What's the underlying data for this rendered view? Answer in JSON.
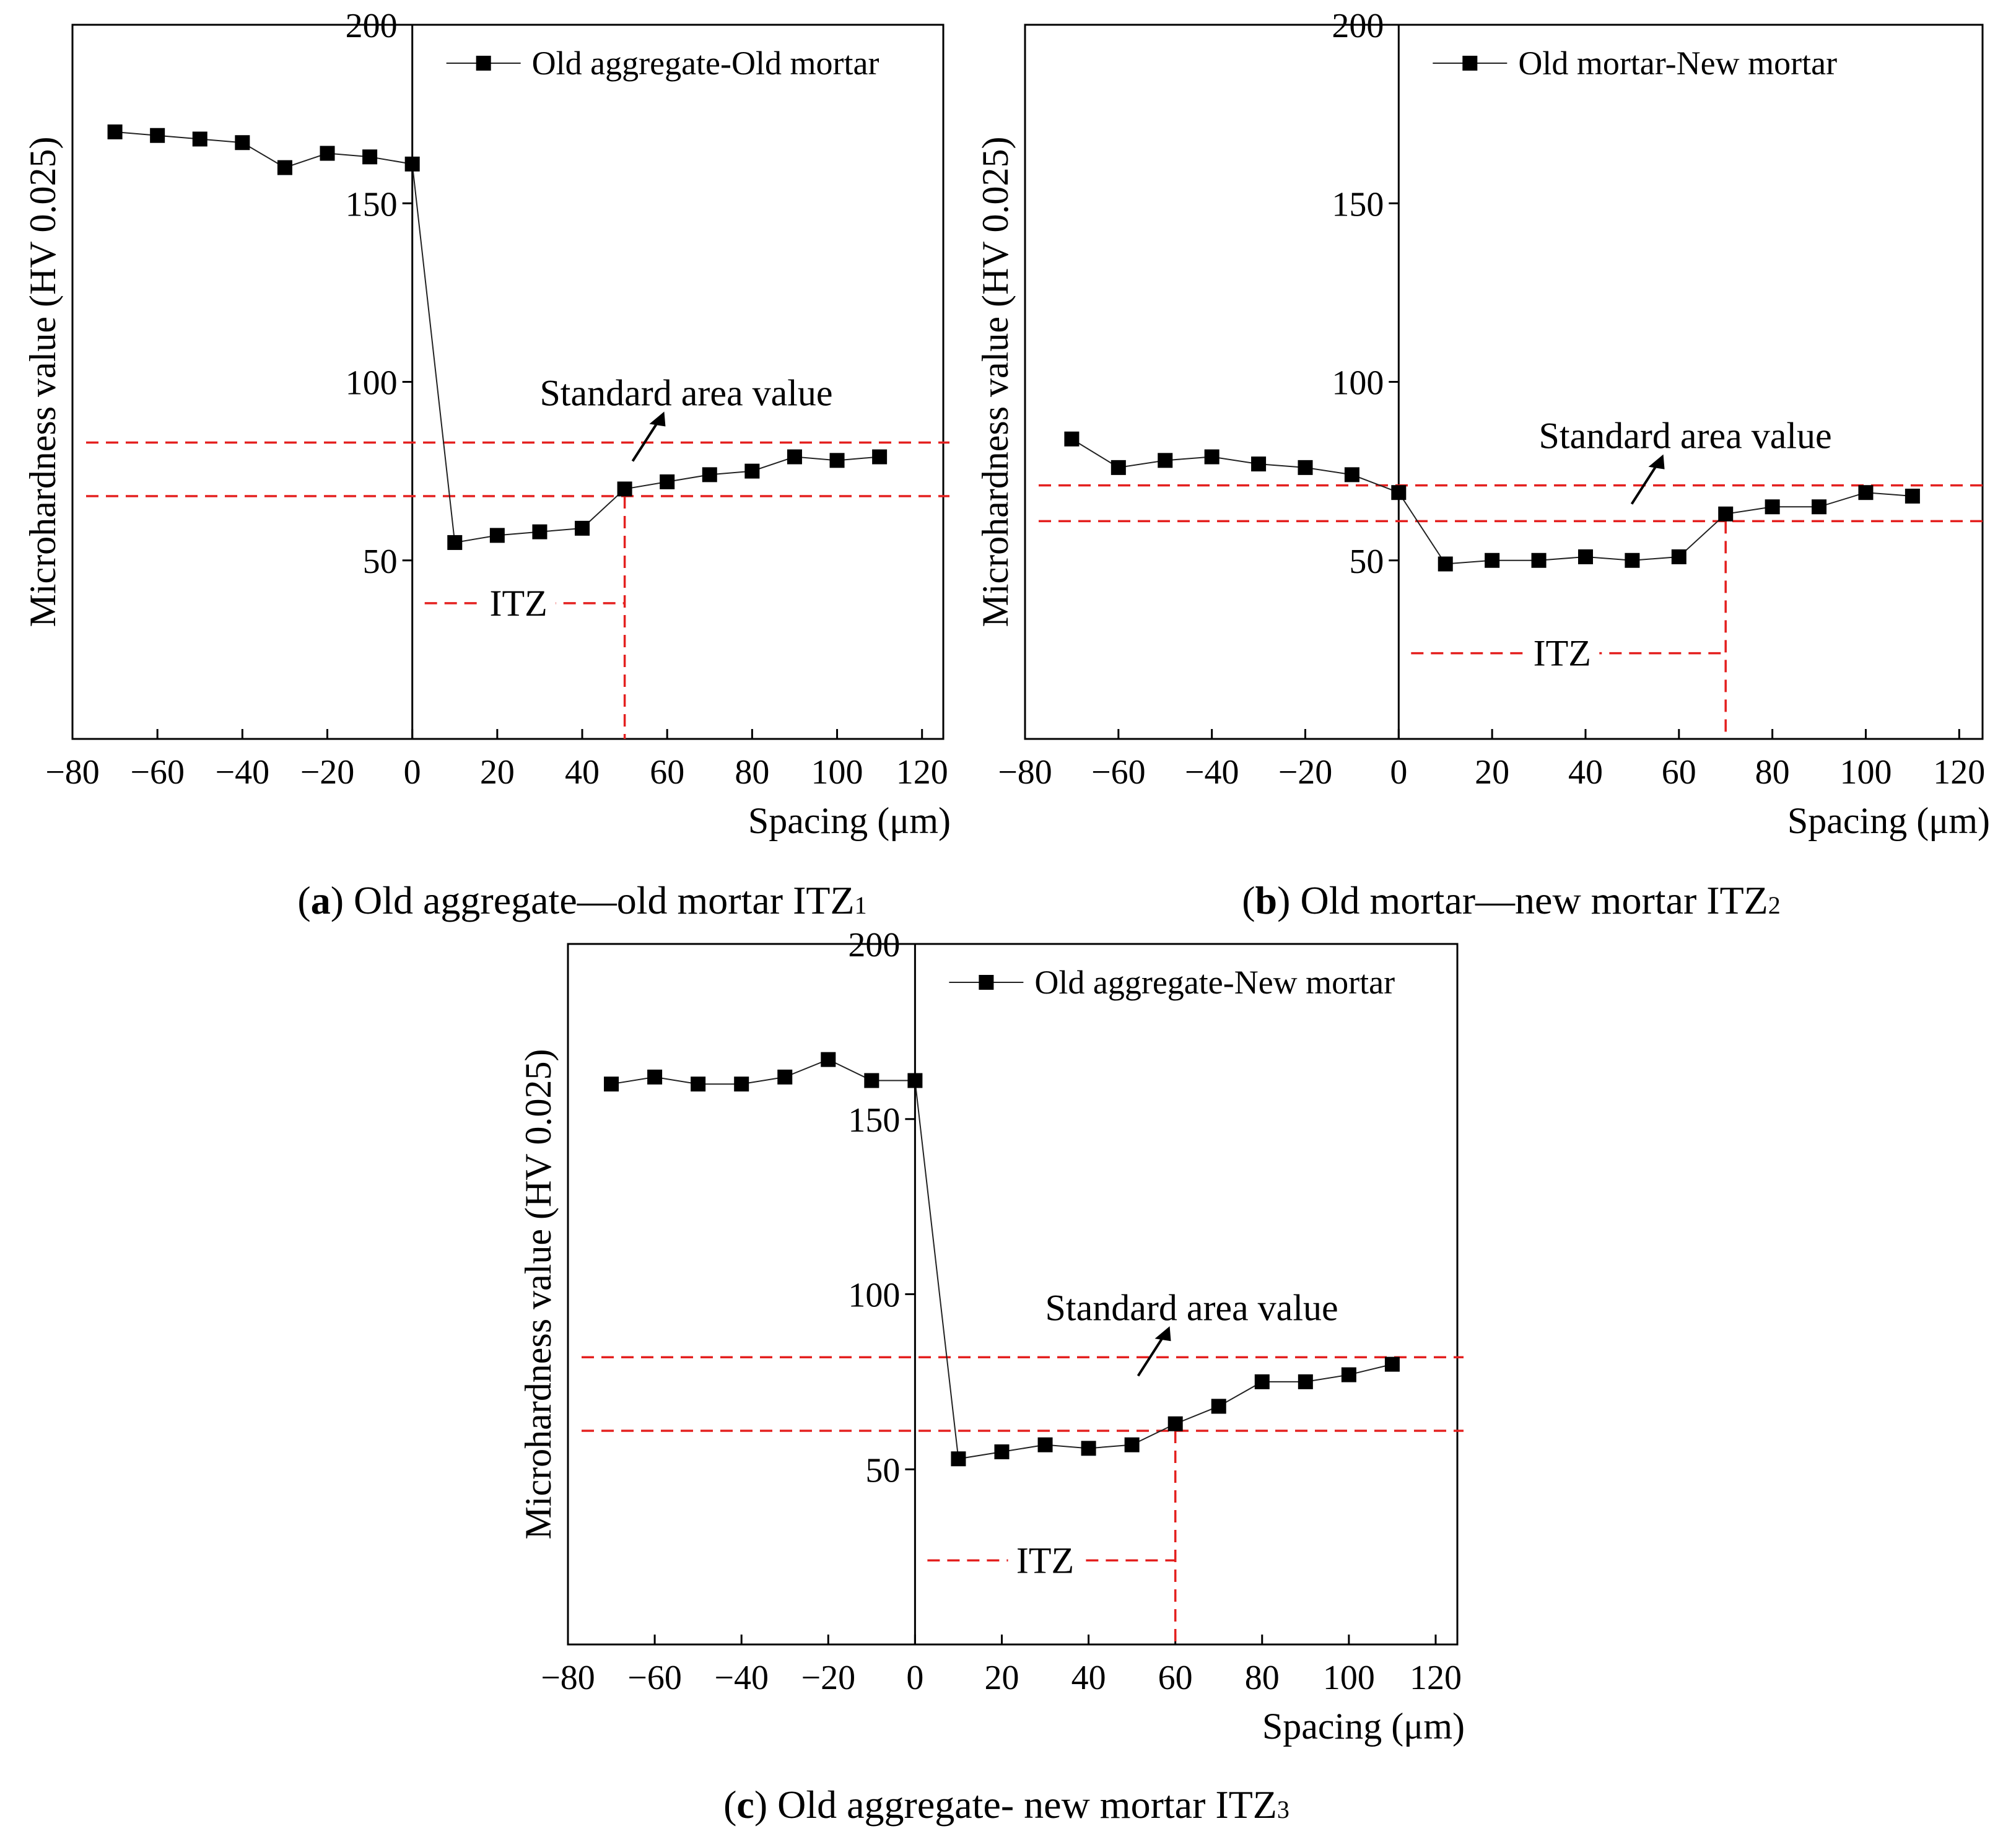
{
  "figure": {
    "captions": [
      {
        "letter": "a",
        "text": " Old aggregate—old mortar ITZ",
        "subscript": "1"
      },
      {
        "letter": "b",
        "text": " Old mortar—new mortar ITZ",
        "subscript": "2"
      },
      {
        "letter": "c",
        "text": " Old aggregate- new mortar ITZ",
        "subscript": "3"
      }
    ]
  },
  "chart_data": [
    {
      "id": "a",
      "type": "line",
      "title": "",
      "xlabel": "Spacing (μm)",
      "ylabel": "Microhardness value (HV 0.025)",
      "xlim": [
        -80,
        125
      ],
      "ylim": [
        0,
        200
      ],
      "xticks": [
        -80,
        -60,
        -40,
        -20,
        0,
        20,
        40,
        60,
        80,
        100,
        120
      ],
      "yticks": [
        50,
        100,
        150,
        200
      ],
      "xtick_labels": [
        "−80",
        "−60",
        "−40",
        "−20",
        "0",
        "20",
        "40",
        "60",
        "80",
        "100",
        "120"
      ],
      "ytick_labels": [
        "50",
        "100",
        "150",
        "200"
      ],
      "legend": {
        "position": "top-right",
        "entries": [
          "Old aggregate-Old mortar"
        ]
      },
      "series": [
        {
          "name": "Old aggregate-Old mortar",
          "x": [
            -70,
            -60,
            -50,
            -40,
            -30,
            -20,
            -10,
            0,
            10,
            20,
            30,
            40,
            50,
            60,
            70,
            80,
            90,
            100,
            110
          ],
          "y": [
            170,
            169,
            168,
            167,
            160,
            164,
            163,
            161,
            55,
            57,
            58,
            59,
            70,
            72,
            74,
            75,
            79,
            78,
            79
          ]
        }
      ],
      "reference_lines": {
        "label": "Standard area value",
        "y": [
          83,
          68
        ]
      },
      "itz": {
        "label": "ITZ",
        "x_start": 0,
        "x_end": 50,
        "y": 38
      }
    },
    {
      "id": "b",
      "type": "line",
      "title": "",
      "xlabel": "Spacing (μm)",
      "ylabel": "Microhardness value (HV 0.025)",
      "xlim": [
        -80,
        125
      ],
      "ylim": [
        0,
        200
      ],
      "xticks": [
        -80,
        -60,
        -40,
        -20,
        0,
        20,
        40,
        60,
        80,
        100,
        120
      ],
      "yticks": [
        50,
        100,
        150,
        200
      ],
      "xtick_labels": [
        "−80",
        "−60",
        "−40",
        "−20",
        "0",
        "20",
        "40",
        "60",
        "80",
        "100",
        "120"
      ],
      "ytick_labels": [
        "50",
        "100",
        "150",
        "200"
      ],
      "legend": {
        "position": "top-right",
        "entries": [
          "Old mortar-New mortar"
        ]
      },
      "series": [
        {
          "name": "Old mortar-New mortar",
          "x": [
            -70,
            -60,
            -50,
            -40,
            -30,
            -20,
            -10,
            0,
            10,
            20,
            30,
            40,
            50,
            60,
            70,
            80,
            90,
            100,
            110
          ],
          "y": [
            84,
            76,
            78,
            79,
            77,
            76,
            74,
            69,
            49,
            50,
            50,
            51,
            50,
            51,
            63,
            65,
            65,
            69,
            68
          ]
        }
      ],
      "reference_lines": {
        "label": "Standard area value",
        "y": [
          71,
          61
        ]
      },
      "itz": {
        "label": "ITZ",
        "x_start": 0,
        "x_end": 70,
        "y": 24
      }
    },
    {
      "id": "c",
      "type": "line",
      "title": "",
      "xlabel": "Spacing (μm)",
      "ylabel": "Microhardness value (HV 0.025)",
      "xlim": [
        -80,
        125
      ],
      "ylim": [
        0,
        200
      ],
      "xticks": [
        -80,
        -60,
        -40,
        -20,
        0,
        20,
        40,
        60,
        80,
        100,
        120
      ],
      "yticks": [
        50,
        100,
        150,
        200
      ],
      "xtick_labels": [
        "−80",
        "−60",
        "−40",
        "−20",
        "0",
        "20",
        "40",
        "60",
        "80",
        "100",
        "120"
      ],
      "ytick_labels": [
        "50",
        "100",
        "150",
        "200"
      ],
      "legend": {
        "position": "top-right",
        "entries": [
          "Old aggregate-New mortar"
        ]
      },
      "series": [
        {
          "name": "Old aggregate-New mortar",
          "x": [
            -70,
            -60,
            -50,
            -40,
            -30,
            -20,
            -10,
            0,
            10,
            20,
            30,
            40,
            50,
            60,
            70,
            80,
            90,
            100,
            110
          ],
          "y": [
            160,
            162,
            160,
            160,
            162,
            167,
            161,
            161,
            53,
            55,
            57,
            56,
            57,
            63,
            68,
            75,
            75,
            77,
            80
          ]
        }
      ],
      "reference_lines": {
        "label": "Standard area value",
        "y": [
          82,
          61
        ]
      },
      "itz": {
        "label": "ITZ",
        "x_start": 0,
        "x_end": 60,
        "y": 24
      }
    }
  ]
}
